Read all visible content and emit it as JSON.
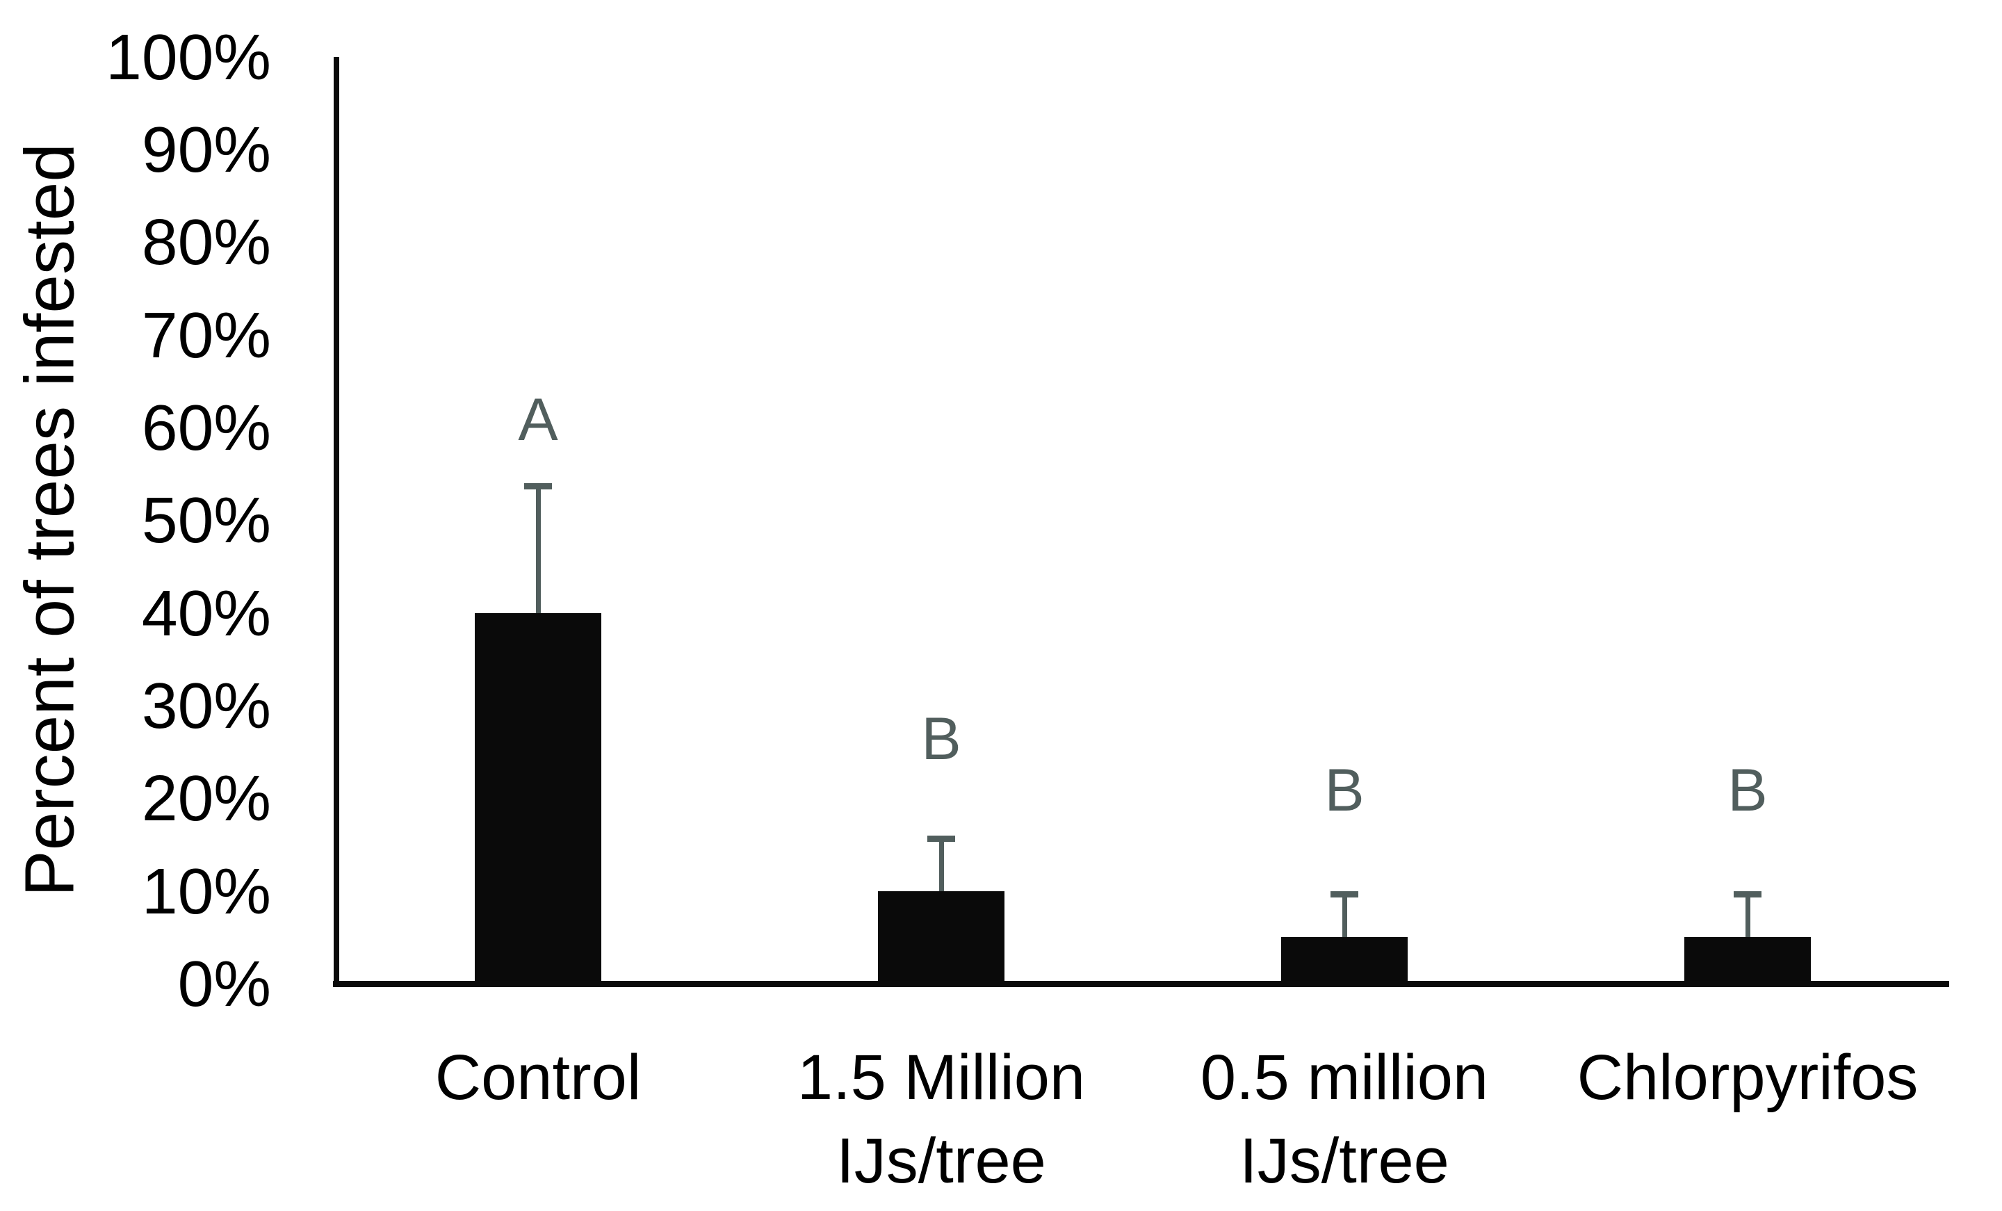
{
  "chart_data": {
    "type": "bar",
    "title": "",
    "xlabel": "",
    "ylabel": "Percent of trees infested",
    "categories": [
      "Control",
      "1.5 Million\nIJs/tree",
      "0.5 million\nIJs/tree",
      "Chlorpyrifos"
    ],
    "values": [
      40,
      10,
      5,
      5
    ],
    "error_upper": [
      14,
      6,
      5,
      5
    ],
    "sig_letters": [
      "A",
      "B",
      "B",
      "B"
    ],
    "sig_letter_bottom_pct": [
      57.6,
      23.2,
      17.6,
      17.6
    ],
    "y_ticks": [
      {
        "value": 100,
        "label": "100%"
      },
      {
        "value": 90,
        "label": "90%"
      },
      {
        "value": 80,
        "label": "80%"
      },
      {
        "value": 70,
        "label": "70%"
      },
      {
        "value": 60,
        "label": "60%"
      },
      {
        "value": 50,
        "label": "50%"
      },
      {
        "value": 40,
        "label": "40%"
      },
      {
        "value": 30,
        "label": "30%"
      },
      {
        "value": 20,
        "label": "20%"
      },
      {
        "value": 10,
        "label": "10%"
      },
      {
        "value": 0,
        "label": "0%"
      }
    ],
    "ylim": [
      0,
      100
    ],
    "grid": false,
    "legend": false,
    "colors": {
      "bar": "#0a0a0a",
      "error_bar": "#515e5d",
      "sig_letter": "#515e5d",
      "axis": "#0b0b0b",
      "text": "#000000",
      "background": "#ffffff"
    }
  }
}
